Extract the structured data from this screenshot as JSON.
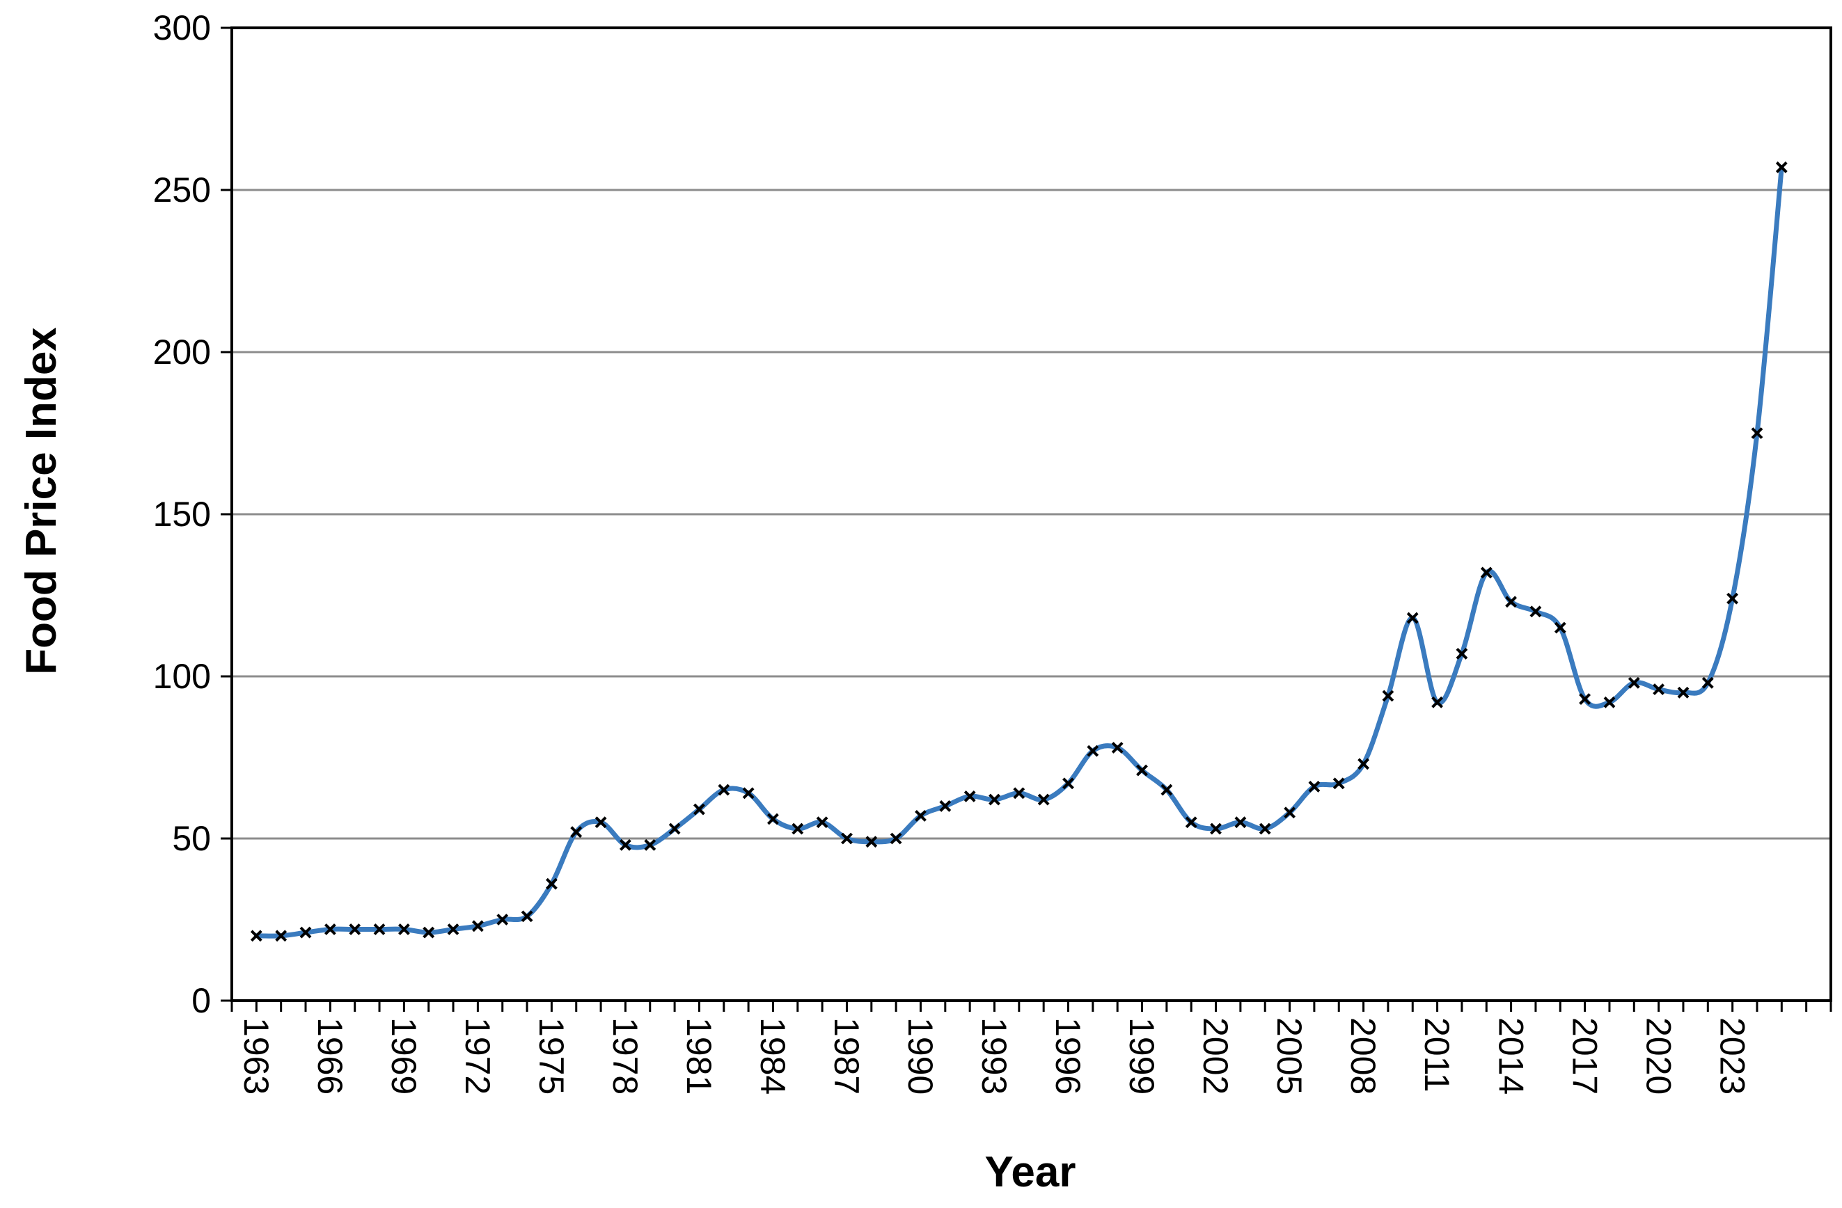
{
  "chart_data": {
    "type": "line",
    "title": "",
    "xlabel": "Year",
    "ylabel": "Food Price Index",
    "ylim": [
      0,
      300
    ],
    "yticks": [
      0,
      50,
      100,
      150,
      200,
      250,
      300
    ],
    "xticks": [
      1963,
      1966,
      1969,
      1972,
      1975,
      1978,
      1981,
      1984,
      1987,
      1990,
      1993,
      1996,
      1999,
      2002,
      2005,
      2008,
      2011,
      2014,
      2017,
      2020,
      2023
    ],
    "grid": "horizontal",
    "legend": "none",
    "colors": {
      "line": "#3a7bbf",
      "marker": "#000000",
      "grid": "#8c8c8c",
      "axis": "#000000"
    },
    "series": [
      {
        "x": [
          1964,
          1965,
          1966,
          1967,
          1968,
          1969,
          1970,
          1971,
          1972,
          1973,
          1974,
          1975,
          1976,
          1977,
          1978,
          1979,
          1980,
          1981,
          1982,
          1983,
          1984,
          1985,
          1986,
          1987,
          1988,
          1989,
          1990,
          1991,
          1992,
          1993,
          1994,
          1995,
          1996,
          1997,
          1998,
          1999,
          2000,
          2001,
          2002,
          2003,
          2004,
          2005,
          2006,
          2007,
          2008,
          2009,
          2010,
          2011,
          2012,
          2013,
          2014,
          2015,
          2016,
          2017,
          2018,
          2019,
          2020,
          2021,
          2022,
          2023,
          2024,
          2025,
          2026
        ],
        "values": [
          20,
          20,
          21,
          22,
          22,
          22,
          22,
          21,
          22,
          23,
          25,
          26,
          36,
          52,
          55,
          48,
          48,
          53,
          59,
          65,
          64,
          56,
          53,
          55,
          50,
          49,
          50,
          57,
          60,
          63,
          62,
          64,
          62,
          67,
          77,
          78,
          71,
          65,
          55,
          53,
          55,
          53,
          58,
          66,
          67,
          73,
          94,
          118,
          92,
          107,
          132,
          123,
          120,
          115,
          93,
          92,
          98,
          96,
          95,
          98,
          124,
          175,
          257
        ]
      }
    ]
  }
}
